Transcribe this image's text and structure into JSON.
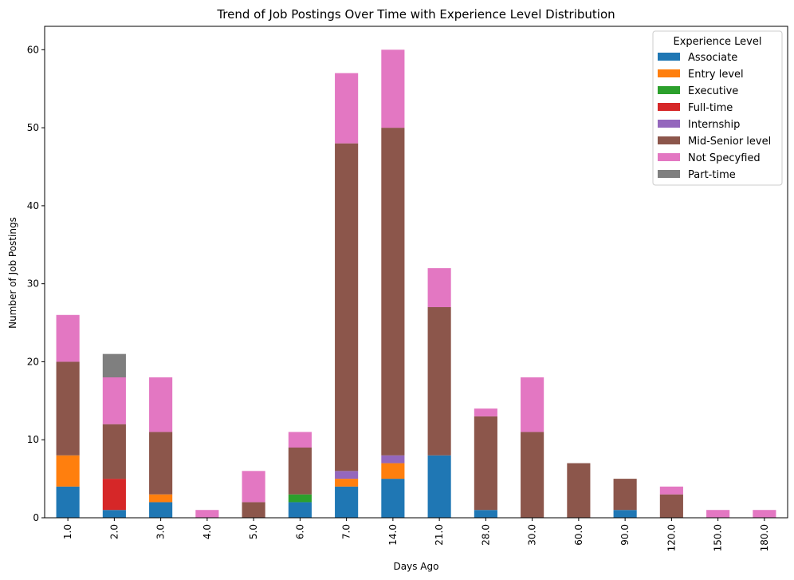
{
  "chart_data": {
    "type": "bar",
    "stacked": true,
    "title": "Trend of Job Postings Over Time with Experience Level Distribution",
    "xlabel": "Days Ago",
    "ylabel": "Number of Job Postings",
    "categories": [
      "1.0",
      "2.0",
      "3.0",
      "4.0",
      "5.0",
      "6.0",
      "7.0",
      "14.0",
      "21.0",
      "28.0",
      "30.0",
      "60.0",
      "90.0",
      "120.0",
      "150.0",
      "180.0"
    ],
    "ylim": [
      0,
      63
    ],
    "yticks": [
      0,
      10,
      20,
      30,
      40,
      50,
      60
    ],
    "grid": false,
    "legend_title": "Experience Level",
    "legend_position": "top-right",
    "series": [
      {
        "name": "Associate",
        "color": "#1f77b4",
        "values": [
          4,
          1,
          2,
          0,
          0,
          2,
          4,
          5,
          8,
          1,
          0,
          0,
          1,
          0,
          0,
          0
        ]
      },
      {
        "name": "Entry level",
        "color": "#ff7f0e",
        "values": [
          4,
          0,
          1,
          0,
          0,
          0,
          1,
          2,
          0,
          0,
          0,
          0,
          0,
          0,
          0,
          0
        ]
      },
      {
        "name": "Executive",
        "color": "#2ca02c",
        "values": [
          0,
          0,
          0,
          0,
          0,
          1,
          0,
          0,
          0,
          0,
          0,
          0,
          0,
          0,
          0,
          0
        ]
      },
      {
        "name": "Full-time",
        "color": "#d62728",
        "values": [
          0,
          4,
          0,
          0,
          0,
          0,
          0,
          0,
          0,
          0,
          0,
          0,
          0,
          0,
          0,
          0
        ]
      },
      {
        "name": "Internship",
        "color": "#9467bd",
        "values": [
          0,
          0,
          0,
          0,
          0,
          0,
          1,
          1,
          0,
          0,
          0,
          0,
          0,
          0,
          0,
          0
        ]
      },
      {
        "name": "Mid-Senior level",
        "color": "#8c564b",
        "values": [
          12,
          7,
          8,
          0,
          2,
          6,
          42,
          42,
          19,
          12,
          11,
          7,
          4,
          3,
          0,
          0
        ]
      },
      {
        "name": "Not Specyfied",
        "color": "#e377c2",
        "values": [
          6,
          6,
          7,
          1,
          4,
          2,
          9,
          10,
          5,
          1,
          7,
          0,
          0,
          1,
          1,
          1
        ]
      },
      {
        "name": "Part-time",
        "color": "#7f7f7f",
        "values": [
          0,
          3,
          0,
          0,
          0,
          0,
          0,
          0,
          0,
          0,
          0,
          0,
          0,
          0,
          0,
          0
        ]
      }
    ]
  }
}
